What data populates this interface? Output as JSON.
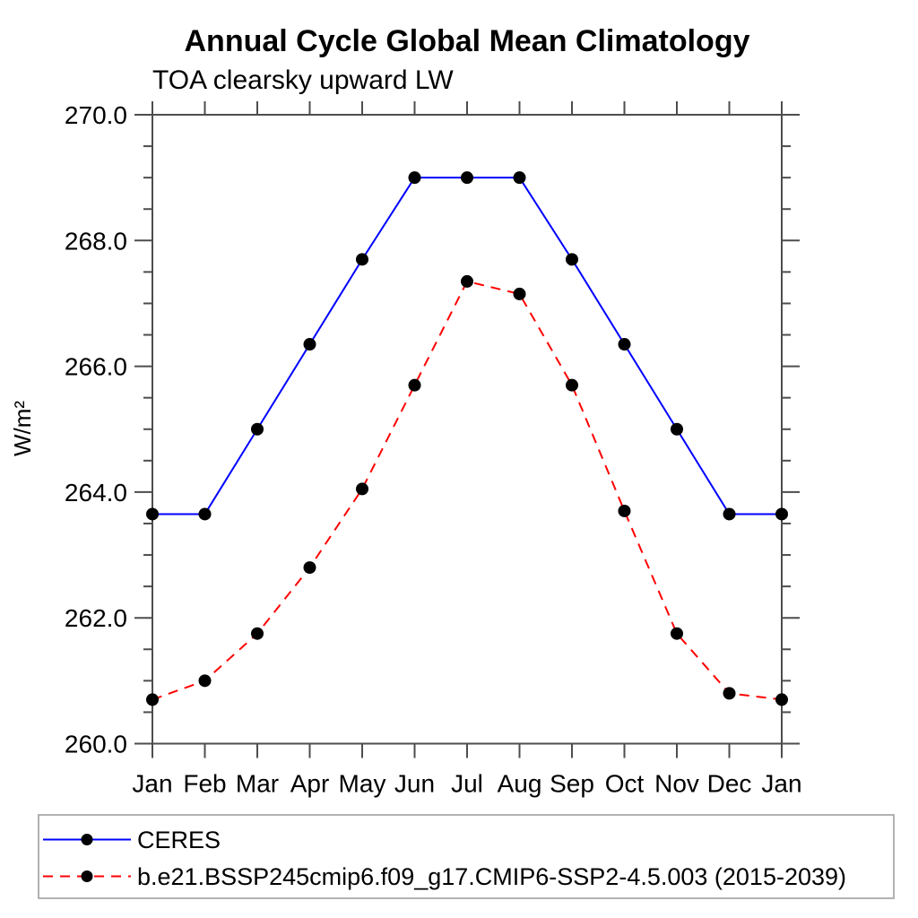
{
  "figure": {
    "background": "#ffffff"
  },
  "chart_data": {
    "type": "line",
    "title": "Annual Cycle Global Mean Climatology",
    "subtitle": "TOA clearsky upward LW",
    "xlabel": "",
    "ylabel": "W/m²",
    "categories": [
      "Jan",
      "Feb",
      "Mar",
      "Apr",
      "May",
      "Jun",
      "Jul",
      "Aug",
      "Sep",
      "Oct",
      "Nov",
      "Dec",
      "Jan"
    ],
    "ylim": [
      260.0,
      270.0
    ],
    "ytick_interval": 2.0,
    "yminor_interval": 0.5,
    "ytick_labels": [
      "260.0",
      "262.0",
      "264.0",
      "266.0",
      "268.0",
      "270.0"
    ],
    "grid": false,
    "legend_position": "below-plot-boxed",
    "series": [
      {
        "name": "CERES",
        "color": "#0000ff",
        "line_style": "solid",
        "marker": "circle",
        "marker_color": "#000000",
        "values": [
          263.65,
          263.65,
          265.0,
          266.35,
          267.7,
          269.0,
          269.0,
          269.0,
          267.7,
          266.35,
          265.0,
          263.65,
          263.65
        ]
      },
      {
        "name": "b.e21.BSSP245cmip6.f09_g17.CMIP6-SSP2-4.5.003 (2015-2039)",
        "color": "#ff0000",
        "line_style": "dashed",
        "marker": "circle",
        "marker_color": "#000000",
        "values": [
          260.7,
          261.0,
          261.75,
          262.8,
          264.05,
          265.7,
          267.35,
          267.15,
          265.7,
          263.7,
          261.75,
          260.8,
          260.7
        ]
      }
    ]
  },
  "colors": {
    "axis": "#4d4d4d",
    "text": "#000000",
    "legend_border": "#999999",
    "background": "#ffffff"
  }
}
